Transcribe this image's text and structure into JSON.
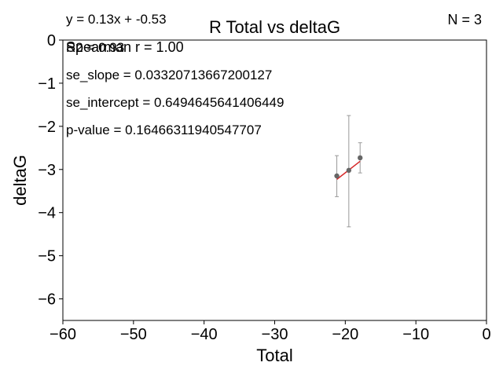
{
  "chart_data": {
    "type": "scatter",
    "title": "R Total vs deltaG",
    "xlabel": "Total",
    "ylabel": "deltaG",
    "xlim": [
      -60,
      0
    ],
    "ylim": [
      -6.5,
      0
    ],
    "xticks": [
      -60,
      -50,
      -40,
      -30,
      -20,
      -10,
      0
    ],
    "yticks": [
      0,
      -1,
      -2,
      -3,
      -4,
      -5,
      -6
    ],
    "xtick_labels": [
      "−60",
      "−50",
      "−40",
      "−30",
      "−20",
      "−10",
      "0"
    ],
    "ytick_labels": [
      "0",
      "−1",
      "−2",
      "−3",
      "−4",
      "−5",
      "−6"
    ],
    "grid": false,
    "points": [
      {
        "x": -21.2,
        "y": -3.15,
        "yerr_low": -3.63,
        "yerr_high": -2.68
      },
      {
        "x": -19.5,
        "y": -3.02,
        "yerr_low": -4.33,
        "yerr_high": -1.75
      },
      {
        "x": -17.9,
        "y": -2.73,
        "yerr_low": -3.08,
        "yerr_high": -2.38
      }
    ],
    "fit_line": {
      "x": [
        -21.2,
        -17.9
      ],
      "y": [
        -3.23,
        -2.81
      ],
      "color": "#d62728"
    },
    "point_color": "#666666",
    "annotations": {
      "equation": "y = 0.13x + -0.53",
      "n_label": "N = 3",
      "r2": "R2 = 0.93",
      "spearman": "Spearman r = 1.00",
      "se_slope": "se_slope = 0.03320713667200127",
      "se_intercept": "se_intercept = 0.6494645641406449",
      "p_value": "p-value = 0.16466311940547707"
    }
  }
}
